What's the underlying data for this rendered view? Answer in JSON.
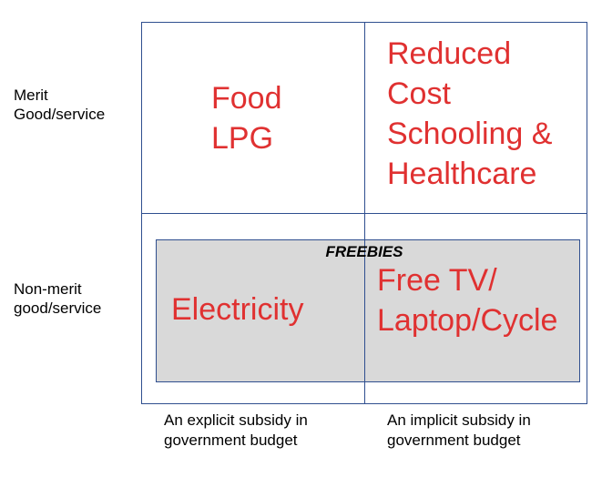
{
  "rows": {
    "merit": [
      "Merit",
      "Good/service"
    ],
    "non_merit": [
      "Non-merit",
      "good/service"
    ]
  },
  "columns": {
    "explicit": [
      "An explicit subsidy in",
      "government budget"
    ],
    "implicit": [
      "An implicit subsidy in",
      "government budget"
    ]
  },
  "cells": {
    "merit_explicit": [
      "Food",
      "LPG"
    ],
    "merit_implicit": [
      "Reduced",
      "Cost",
      "Schooling &",
      "Healthcare"
    ],
    "nonmerit_explicit": [
      "Electricity"
    ],
    "nonmerit_implicit": [
      "Free TV/",
      "Laptop/Cycle"
    ]
  },
  "freebies_label": "FREEBIES",
  "colors": {
    "cell_text": "#e03131",
    "grid_line": "#2f4f8f",
    "freebies_fill": "#d9d9d9"
  }
}
